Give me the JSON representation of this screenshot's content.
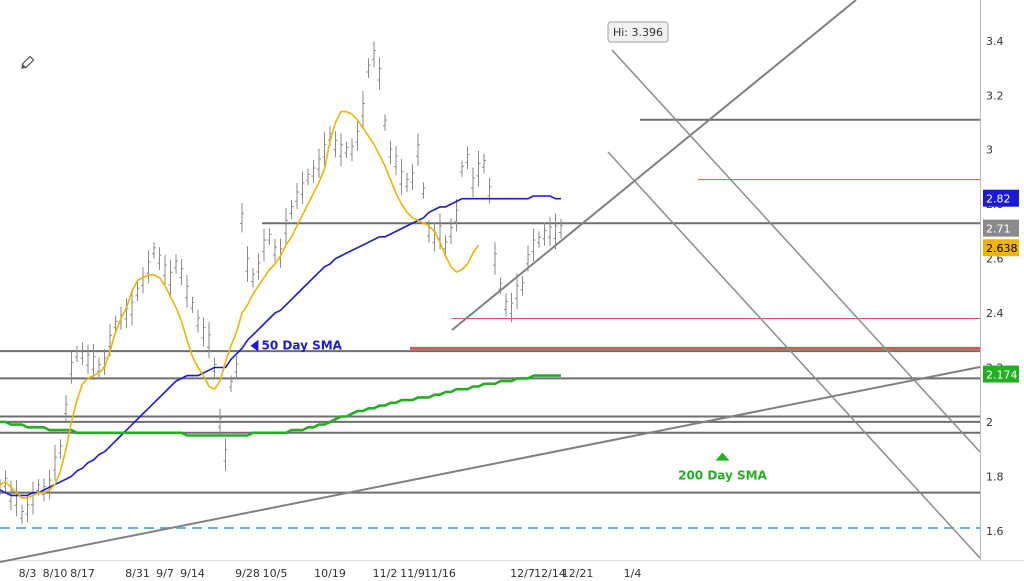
{
  "chart_data": {
    "type": "line",
    "title": "",
    "xlabel": "",
    "ylabel": "",
    "ylim": [
      1.5,
      3.55
    ],
    "y_ticks": [
      1.6,
      1.8,
      2,
      2.2,
      2.4,
      2.6,
      2.8,
      3,
      3.2,
      3.4
    ],
    "y_tick_labels": [
      "1.6",
      "1.8",
      "2",
      "2.2",
      "2.4",
      "2.6",
      "2.8",
      "3",
      "3.2",
      "3.4"
    ],
    "x_tick_labels": [
      "8/3",
      "8/10",
      "8/17",
      "8/31",
      "9/7",
      "9/14",
      "9/28",
      "10/5",
      "10/19",
      "11/2",
      "11/9",
      "11/16",
      "12/7",
      "12/14",
      "12/21",
      "1/4"
    ],
    "x_tick_index": [
      5,
      10,
      15,
      25,
      30,
      35,
      45,
      50,
      60,
      70,
      75,
      80,
      95,
      100,
      105,
      115
    ],
    "grid": false,
    "high_annotation": {
      "label": "Hi: 3.396",
      "value": 3.396,
      "bar": 70
    },
    "price_bars": {
      "start_index": 0,
      "values": [
        1.76,
        1.78,
        1.73,
        1.72,
        1.66,
        1.68,
        1.72,
        1.76,
        1.75,
        1.77,
        1.85,
        1.9,
        2.05,
        2.2,
        2.25,
        2.25,
        2.23,
        2.22,
        2.2,
        2.22,
        2.3,
        2.36,
        2.38,
        2.4,
        2.42,
        2.48,
        2.52,
        2.57,
        2.63,
        2.6,
        2.56,
        2.53,
        2.58,
        2.55,
        2.48,
        2.43,
        2.37,
        2.33,
        2.3,
        2.2,
        2.0,
        1.88,
        2.14,
        2.2,
        2.75,
        2.58,
        2.53,
        2.57,
        2.65,
        2.68,
        2.63,
        2.62,
        2.72,
        2.78,
        2.83,
        2.86,
        2.9,
        2.92,
        2.95,
        3.0,
        3.05,
        3.02,
        3.0,
        3.0,
        3.0,
        3.05,
        3.15,
        3.3,
        3.35,
        3.28,
        3.1,
        2.99,
        2.96,
        2.9,
        2.88,
        2.9,
        3.0,
        2.85,
        2.7,
        2.68,
        2.7,
        2.65,
        2.7,
        2.76,
        2.93,
        2.97,
        2.88,
        2.93,
        2.95,
        2.85,
        2.6,
        2.5,
        2.43,
        2.42,
        2.48,
        2.5,
        2.6,
        2.65,
        2.67,
        2.69,
        2.7,
        2.7,
        2.71
      ]
    },
    "series": [
      {
        "name": "50 Day SMA",
        "color": "#1a1ad6",
        "start_index": 0,
        "values": [
          1.75,
          1.74,
          1.73,
          1.73,
          1.73,
          1.73,
          1.74,
          1.74,
          1.75,
          1.76,
          1.77,
          1.78,
          1.79,
          1.8,
          1.82,
          1.83,
          1.85,
          1.86,
          1.88,
          1.89,
          1.91,
          1.93,
          1.95,
          1.97,
          1.99,
          2.01,
          2.03,
          2.05,
          2.07,
          2.09,
          2.11,
          2.13,
          2.15,
          2.16,
          2.17,
          2.17,
          2.17,
          2.18,
          2.19,
          2.2,
          2.2,
          2.2,
          2.23,
          2.25,
          2.27,
          2.3,
          2.32,
          2.34,
          2.36,
          2.38,
          2.4,
          2.41,
          2.43,
          2.45,
          2.47,
          2.49,
          2.51,
          2.53,
          2.55,
          2.57,
          2.58,
          2.6,
          2.61,
          2.62,
          2.63,
          2.64,
          2.65,
          2.66,
          2.67,
          2.68,
          2.68,
          2.69,
          2.7,
          2.71,
          2.72,
          2.73,
          2.74,
          2.75,
          2.77,
          2.78,
          2.79,
          2.79,
          2.8,
          2.81,
          2.82,
          2.82,
          2.82,
          2.82,
          2.82,
          2.82,
          2.82,
          2.82,
          2.82,
          2.82,
          2.82,
          2.82,
          2.82,
          2.83,
          2.83,
          2.83,
          2.83,
          2.82,
          2.82
        ]
      },
      {
        "name": "200 Day SMA",
        "color": "#22b022",
        "start_index": 0,
        "values": [
          2.0,
          2.0,
          1.99,
          1.99,
          1.99,
          1.98,
          1.98,
          1.98,
          1.98,
          1.97,
          1.97,
          1.97,
          1.97,
          1.97,
          1.96,
          1.96,
          1.96,
          1.96,
          1.96,
          1.96,
          1.96,
          1.96,
          1.96,
          1.96,
          1.96,
          1.96,
          1.96,
          1.96,
          1.96,
          1.96,
          1.96,
          1.96,
          1.96,
          1.96,
          1.95,
          1.95,
          1.95,
          1.95,
          1.95,
          1.95,
          1.95,
          1.95,
          1.95,
          1.95,
          1.95,
          1.95,
          1.96,
          1.96,
          1.96,
          1.96,
          1.96,
          1.96,
          1.96,
          1.97,
          1.97,
          1.97,
          1.98,
          1.98,
          1.99,
          1.99,
          2.0,
          2.01,
          2.02,
          2.02,
          2.03,
          2.04,
          2.04,
          2.05,
          2.05,
          2.06,
          2.06,
          2.07,
          2.07,
          2.08,
          2.08,
          2.08,
          2.09,
          2.09,
          2.09,
          2.1,
          2.1,
          2.11,
          2.11,
          2.12,
          2.12,
          2.12,
          2.13,
          2.13,
          2.14,
          2.14,
          2.14,
          2.15,
          2.15,
          2.15,
          2.16,
          2.16,
          2.16,
          2.17,
          2.17,
          2.17,
          2.17,
          2.17,
          2.17
        ]
      },
      {
        "name": "",
        "color": "#f0b400",
        "start_index": 0,
        "values": [
          1.77,
          1.78,
          1.76,
          1.74,
          1.72,
          1.72,
          1.73,
          1.74,
          1.74,
          1.75,
          1.77,
          1.82,
          1.9,
          2.0,
          2.08,
          2.14,
          2.16,
          2.17,
          2.18,
          2.2,
          2.26,
          2.33,
          2.38,
          2.42,
          2.48,
          2.52,
          2.53,
          2.54,
          2.54,
          2.53,
          2.5,
          2.46,
          2.42,
          2.37,
          2.3,
          2.24,
          2.2,
          2.17,
          2.13,
          2.12,
          2.15,
          2.22,
          2.28,
          2.33,
          2.4,
          2.43,
          2.47,
          2.5,
          2.53,
          2.56,
          2.58,
          2.61,
          2.65,
          2.68,
          2.72,
          2.76,
          2.8,
          2.84,
          2.88,
          2.93,
          3.03,
          3.1,
          3.14,
          3.14,
          3.13,
          3.11,
          3.08,
          3.05,
          3.02,
          2.98,
          2.94,
          2.89,
          2.84,
          2.8,
          2.77,
          2.75,
          2.74,
          2.73,
          2.72,
          2.7,
          2.66,
          2.61,
          2.57,
          2.55,
          2.56,
          2.58,
          2.62,
          2.65
        ]
      }
    ],
    "overlays": {
      "horizontal_levels_gray": [
        3.11,
        2.73,
        2.26,
        2.16,
        2.02,
        2.0,
        1.96,
        1.74
      ],
      "horizontal_levels_red": [
        2.89,
        2.38,
        2.27
      ],
      "horizontal_level_dashed": 1.61
    },
    "legend": {
      "position": "none"
    },
    "annotations": [
      {
        "text": "50 Day SMA",
        "color": "#1a1ad6",
        "value": 2.28,
        "bar": 47
      },
      {
        "text": "200 Day SMA",
        "color": "#22b022",
        "value": 1.88,
        "bar": 75
      }
    ],
    "right_badges": [
      {
        "text": "2.82",
        "value": 2.82,
        "bg": "#1a1ad6",
        "fg": "#ffffff"
      },
      {
        "text": "2.71",
        "value": 2.71,
        "bg": "#8a8a8a",
        "fg": "#ffffff"
      },
      {
        "text": "2.638",
        "value": 2.638,
        "bg": "#f0b400",
        "fg": "#000000"
      },
      {
        "text": "2.174",
        "value": 2.174,
        "bg": "#22b022",
        "fg": "#ffffff"
      }
    ]
  },
  "toolbar": {
    "icon": "pencil-icon"
  }
}
